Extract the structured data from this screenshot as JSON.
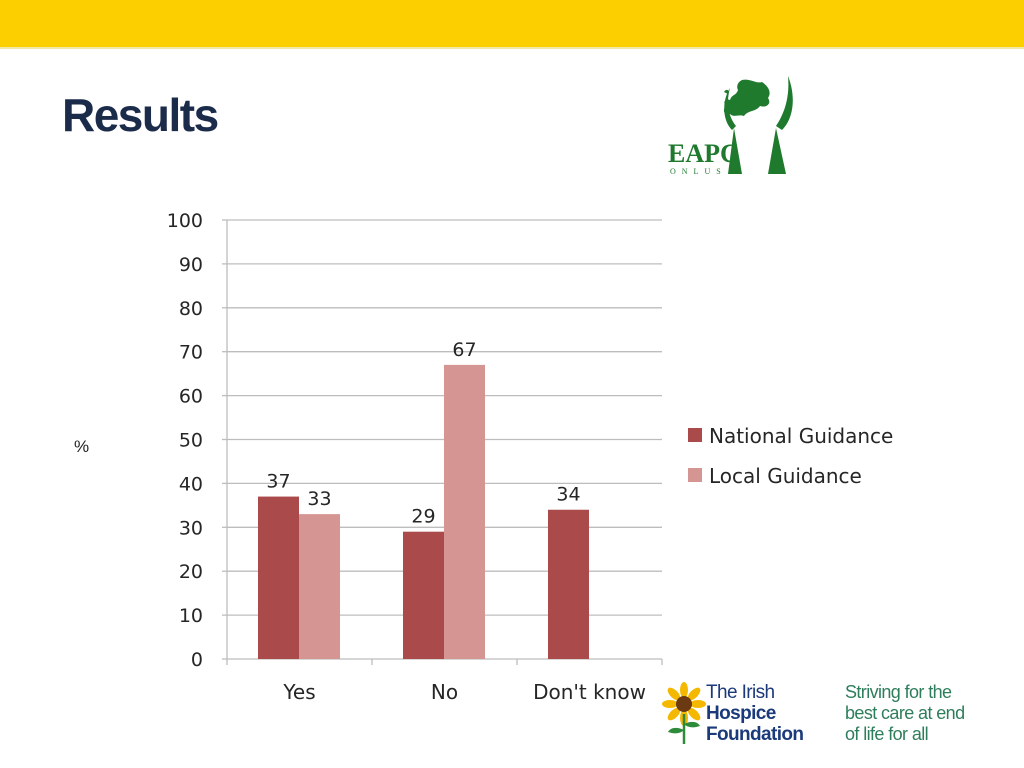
{
  "slide": {
    "title": "Results",
    "y_unit": "%",
    "accent_color": "#FCD000",
    "title_color": "#1B2B4A"
  },
  "logos": {
    "eapc": {
      "text": "EAPC",
      "subtext": "ONLUS",
      "color": "#1F7A2E"
    },
    "ihf": {
      "name_line1": "The Irish",
      "name_line2": "Hospice",
      "name_line3": "Foundation",
      "tagline_line1": "Striving for the",
      "tagline_line2": "best care at end",
      "tagline_line3": "of life for all",
      "name_color": "#1B3A7A",
      "tagline_color": "#2E7D5B"
    }
  },
  "chart_data": {
    "type": "bar",
    "categories": [
      "Yes",
      "No",
      "Don't know"
    ],
    "series": [
      {
        "name": "National Guidance",
        "values": [
          37,
          29,
          34
        ],
        "color": "#AB4A4A"
      },
      {
        "name": "Local Guidance",
        "values": [
          33,
          67,
          null
        ],
        "color": "#D49593"
      }
    ],
    "ylim": [
      0,
      100
    ],
    "yticks": [
      0,
      10,
      20,
      30,
      40,
      50,
      60,
      70,
      80,
      90,
      100
    ],
    "grid": true,
    "legend": "right",
    "data_labels": true
  }
}
